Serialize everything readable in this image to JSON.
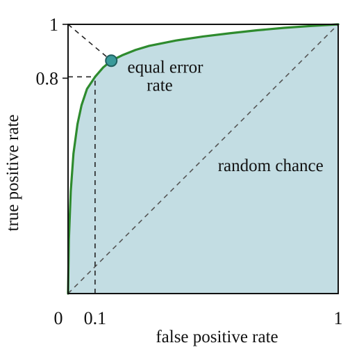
{
  "chart_data": {
    "type": "area",
    "xlabel": "false positive rate",
    "ylabel": "true positive rate",
    "xlim": [
      0,
      1
    ],
    "ylim": [
      0,
      1
    ],
    "x_ticks": [
      {
        "value": 0,
        "label": "0"
      },
      {
        "value": 0.1,
        "label": "0.1"
      },
      {
        "value": 1,
        "label": "1"
      }
    ],
    "y_ticks": [
      {
        "value": 0.8,
        "label": "0.8"
      },
      {
        "value": 1,
        "label": "1"
      }
    ],
    "grid": false,
    "series": [
      {
        "kind": "roc-curve",
        "x": [
          0,
          0.003,
          0.01,
          0.02,
          0.035,
          0.05,
          0.07,
          0.1,
          0.13,
          0.16,
          0.2,
          0.25,
          0.3,
          0.4,
          0.5,
          0.6,
          0.7,
          0.8,
          0.9,
          1.0
        ],
        "y": [
          0,
          0.2,
          0.38,
          0.52,
          0.63,
          0.7,
          0.76,
          0.805,
          0.84,
          0.865,
          0.885,
          0.905,
          0.92,
          0.94,
          0.955,
          0.967,
          0.978,
          0.987,
          0.994,
          1.0
        ],
        "color": "#2e8b2e",
        "fill": "#c3dde3"
      },
      {
        "kind": "diagonal",
        "x": [
          0,
          1
        ],
        "y": [
          0,
          1
        ],
        "style": "dashed",
        "color": "#555555"
      },
      {
        "kind": "eer-line",
        "x": [
          0,
          1
        ],
        "y": [
          1,
          0
        ],
        "style": "dashed",
        "color": "#222222"
      }
    ],
    "reference_lines": [
      {
        "x": 0.1,
        "y": 0.805,
        "style": "dashed"
      }
    ],
    "points": [
      {
        "x": 0.16,
        "y": 0.865,
        "color": "#3a9a9a"
      }
    ],
    "annotations": [
      {
        "lines": [
          "equal error",
          "rate"
        ],
        "x": 0.36,
        "y": 0.82
      },
      {
        "lines": [
          "random chance"
        ],
        "x": 0.75,
        "y": 0.455
      }
    ]
  }
}
